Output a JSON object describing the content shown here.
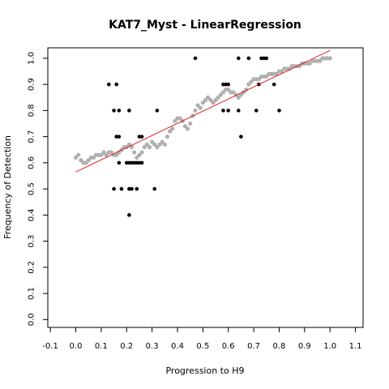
{
  "chart_data": {
    "type": "scatter",
    "title": "KAT7_Myst - LinearRegression",
    "xlabel": "Progression to H9",
    "ylabel": "Frequency of Detection",
    "xlim": [
      -0.11,
      1.13
    ],
    "ylim": [
      -0.03,
      1.04
    ],
    "x_ticks": [
      "-0.1",
      "0.0",
      "0.1",
      "0.2",
      "0.3",
      "0.4",
      "0.5",
      "0.6",
      "0.7",
      "0.8",
      "0.9",
      "1.0",
      "1.1"
    ],
    "y_ticks": [
      "0.0",
      "0.1",
      "0.2",
      "0.3",
      "0.4",
      "0.5",
      "0.6",
      "0.7",
      "0.8",
      "0.9",
      "1.0"
    ],
    "grid": false,
    "legend": "none",
    "series": [
      {
        "kind": "smoothed-points",
        "color": "#b0b0b0",
        "points": [
          [
            0.0,
            0.62
          ],
          [
            0.01,
            0.63
          ],
          [
            0.02,
            0.61
          ],
          [
            0.03,
            0.6
          ],
          [
            0.04,
            0.6
          ],
          [
            0.05,
            0.61
          ],
          [
            0.06,
            0.62
          ],
          [
            0.07,
            0.62
          ],
          [
            0.08,
            0.63
          ],
          [
            0.09,
            0.63
          ],
          [
            0.1,
            0.63
          ],
          [
            0.11,
            0.64
          ],
          [
            0.12,
            0.63
          ],
          [
            0.13,
            0.64
          ],
          [
            0.14,
            0.64
          ],
          [
            0.15,
            0.63
          ],
          [
            0.16,
            0.63
          ],
          [
            0.17,
            0.64
          ],
          [
            0.18,
            0.65
          ],
          [
            0.19,
            0.66
          ],
          [
            0.2,
            0.66
          ],
          [
            0.21,
            0.67
          ],
          [
            0.22,
            0.66
          ],
          [
            0.23,
            0.64
          ],
          [
            0.24,
            0.62
          ],
          [
            0.25,
            0.63
          ],
          [
            0.26,
            0.64
          ],
          [
            0.27,
            0.66
          ],
          [
            0.28,
            0.67
          ],
          [
            0.29,
            0.66
          ],
          [
            0.3,
            0.68
          ],
          [
            0.31,
            0.67
          ],
          [
            0.32,
            0.66
          ],
          [
            0.33,
            0.67
          ],
          [
            0.34,
            0.68
          ],
          [
            0.35,
            0.67
          ],
          [
            0.36,
            0.7
          ],
          [
            0.37,
            0.72
          ],
          [
            0.38,
            0.73
          ],
          [
            0.39,
            0.76
          ],
          [
            0.4,
            0.77
          ],
          [
            0.41,
            0.77
          ],
          [
            0.42,
            0.76
          ],
          [
            0.43,
            0.74
          ],
          [
            0.44,
            0.73
          ],
          [
            0.45,
            0.75
          ],
          [
            0.46,
            0.78
          ],
          [
            0.47,
            0.8
          ],
          [
            0.48,
            0.82
          ],
          [
            0.49,
            0.81
          ],
          [
            0.5,
            0.83
          ],
          [
            0.51,
            0.84
          ],
          [
            0.52,
            0.85
          ],
          [
            0.53,
            0.84
          ],
          [
            0.54,
            0.83
          ],
          [
            0.55,
            0.84
          ],
          [
            0.56,
            0.85
          ],
          [
            0.57,
            0.86
          ],
          [
            0.58,
            0.87
          ],
          [
            0.59,
            0.88
          ],
          [
            0.6,
            0.88
          ],
          [
            0.61,
            0.87
          ],
          [
            0.62,
            0.87
          ],
          [
            0.63,
            0.86
          ],
          [
            0.64,
            0.85
          ],
          [
            0.65,
            0.86
          ],
          [
            0.66,
            0.87
          ],
          [
            0.67,
            0.88
          ],
          [
            0.68,
            0.9
          ],
          [
            0.69,
            0.91
          ],
          [
            0.7,
            0.92
          ],
          [
            0.71,
            0.92
          ],
          [
            0.72,
            0.92
          ],
          [
            0.73,
            0.93
          ],
          [
            0.74,
            0.93
          ],
          [
            0.75,
            0.93
          ],
          [
            0.76,
            0.94
          ],
          [
            0.77,
            0.94
          ],
          [
            0.78,
            0.94
          ],
          [
            0.79,
            0.94
          ],
          [
            0.8,
            0.95
          ],
          [
            0.81,
            0.95
          ],
          [
            0.82,
            0.96
          ],
          [
            0.83,
            0.96
          ],
          [
            0.84,
            0.96
          ],
          [
            0.85,
            0.97
          ],
          [
            0.86,
            0.97
          ],
          [
            0.87,
            0.97
          ],
          [
            0.88,
            0.97
          ],
          [
            0.89,
            0.98
          ],
          [
            0.9,
            0.98
          ],
          [
            0.91,
            0.98
          ],
          [
            0.92,
            0.98
          ],
          [
            0.93,
            0.99
          ],
          [
            0.94,
            0.99
          ],
          [
            0.95,
            0.99
          ],
          [
            0.96,
            0.99
          ],
          [
            0.97,
            1.0
          ],
          [
            0.98,
            1.0
          ],
          [
            0.99,
            1.0
          ],
          [
            1.0,
            1.0
          ]
        ]
      },
      {
        "kind": "points",
        "color": "#000000",
        "points": [
          [
            0.13,
            0.9
          ],
          [
            0.16,
            0.9
          ],
          [
            0.15,
            0.8
          ],
          [
            0.17,
            0.8
          ],
          [
            0.16,
            0.7
          ],
          [
            0.17,
            0.7
          ],
          [
            0.17,
            0.6
          ],
          [
            0.15,
            0.5
          ],
          [
            0.18,
            0.5
          ],
          [
            0.2,
            0.6
          ],
          [
            0.21,
            0.6
          ],
          [
            0.22,
            0.6
          ],
          [
            0.23,
            0.6
          ],
          [
            0.24,
            0.6
          ],
          [
            0.25,
            0.6
          ],
          [
            0.26,
            0.6
          ],
          [
            0.21,
            0.5
          ],
          [
            0.22,
            0.5
          ],
          [
            0.24,
            0.5
          ],
          [
            0.21,
            0.4
          ],
          [
            0.21,
            0.8
          ],
          [
            0.25,
            0.7
          ],
          [
            0.26,
            0.7
          ],
          [
            0.31,
            0.5
          ],
          [
            0.32,
            0.8
          ],
          [
            0.47,
            1.0
          ],
          [
            0.58,
            0.9
          ],
          [
            0.59,
            0.9
          ],
          [
            0.6,
            0.9
          ],
          [
            0.58,
            0.8
          ],
          [
            0.6,
            0.8
          ],
          [
            0.64,
            1.0
          ],
          [
            0.64,
            0.8
          ],
          [
            0.65,
            0.7
          ],
          [
            0.68,
            1.0
          ],
          [
            0.71,
            0.8
          ],
          [
            0.72,
            0.9
          ],
          [
            0.73,
            1.0
          ],
          [
            0.74,
            1.0
          ],
          [
            0.75,
            1.0
          ],
          [
            0.78,
            0.9
          ],
          [
            0.8,
            0.8
          ]
        ]
      }
    ],
    "regression_line": {
      "color": "#dd2222",
      "x": [
        0.0,
        1.0
      ],
      "y": [
        0.565,
        1.03
      ]
    }
  }
}
